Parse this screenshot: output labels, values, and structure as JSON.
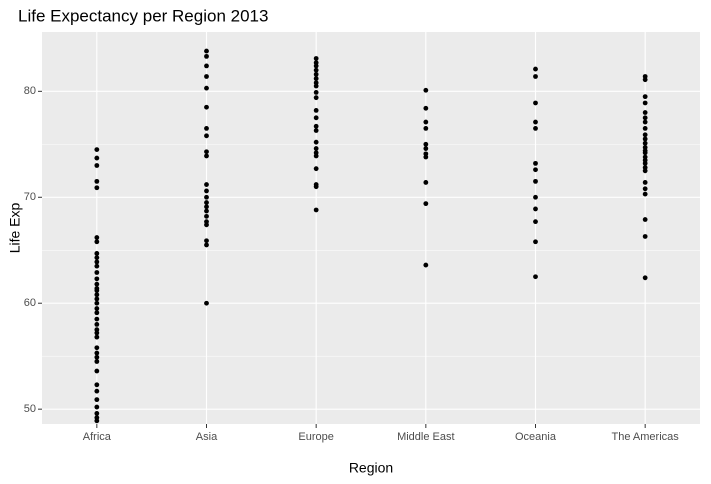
{
  "chart_data": {
    "type": "strip",
    "title": "Life Expectancy per Region 2013",
    "x_label": "Region",
    "y_label": "Life Exp",
    "categories": [
      "Africa",
      "Asia",
      "Europe",
      "Middle East",
      "Oceania",
      "The Americas"
    ],
    "x": [
      "Africa",
      "Africa",
      "Africa",
      "Africa",
      "Africa",
      "Africa",
      "Africa",
      "Africa",
      "Africa",
      "Africa",
      "Africa",
      "Africa",
      "Africa",
      "Africa",
      "Africa",
      "Africa",
      "Africa",
      "Africa",
      "Africa",
      "Africa",
      "Africa",
      "Africa",
      "Africa",
      "Africa",
      "Africa",
      "Africa",
      "Africa",
      "Africa",
      "Africa",
      "Africa",
      "Africa",
      "Africa",
      "Africa",
      "Africa",
      "Africa",
      "Africa",
      "Africa",
      "Africa",
      "Asia",
      "Asia",
      "Asia",
      "Asia",
      "Asia",
      "Asia",
      "Asia",
      "Asia",
      "Asia",
      "Asia",
      "Asia",
      "Asia",
      "Asia",
      "Asia",
      "Asia",
      "Asia",
      "Asia",
      "Asia",
      "Asia",
      "Asia",
      "Asia",
      "Asia",
      "Europe",
      "Europe",
      "Europe",
      "Europe",
      "Europe",
      "Europe",
      "Europe",
      "Europe",
      "Europe",
      "Europe",
      "Europe",
      "Europe",
      "Europe",
      "Europe",
      "Europe",
      "Europe",
      "Europe",
      "Europe",
      "Europe",
      "Europe",
      "Europe",
      "Europe",
      "Middle East",
      "Middle East",
      "Middle East",
      "Middle East",
      "Middle East",
      "Middle East",
      "Middle East",
      "Middle East",
      "Middle East",
      "Middle East",
      "Middle East",
      "Oceania",
      "Oceania",
      "Oceania",
      "Oceania",
      "Oceania",
      "Oceania",
      "Oceania",
      "Oceania",
      "Oceania",
      "Oceania",
      "Oceania",
      "Oceania",
      "Oceania",
      "The Americas",
      "The Americas",
      "The Americas",
      "The Americas",
      "The Americas",
      "The Americas",
      "The Americas",
      "The Americas",
      "The Americas",
      "The Americas",
      "The Americas",
      "The Americas",
      "The Americas",
      "The Americas",
      "The Americas",
      "The Americas",
      "The Americas",
      "The Americas",
      "The Americas",
      "The Americas",
      "The Americas",
      "The Americas",
      "The Americas",
      "The Americas",
      "The Americas"
    ],
    "y": [
      74.5,
      73.7,
      73.0,
      71.5,
      70.9,
      66.2,
      65.8,
      64.7,
      64.3,
      63.9,
      63.5,
      62.9,
      62.3,
      61.8,
      61.4,
      61.2,
      60.8,
      60.4,
      60.0,
      59.5,
      59.1,
      58.5,
      58.0,
      57.5,
      57.2,
      56.8,
      55.8,
      55.3,
      54.9,
      54.5,
      53.6,
      52.3,
      51.7,
      50.9,
      50.2,
      49.6,
      49.2,
      48.9,
      83.8,
      83.3,
      82.4,
      81.4,
      80.3,
      78.5,
      76.5,
      75.8,
      74.3,
      73.9,
      71.2,
      70.6,
      70.0,
      69.5,
      69.1,
      68.7,
      68.2,
      67.7,
      67.4,
      65.9,
      65.5,
      60.0,
      83.1,
      82.7,
      82.4,
      82.0,
      81.6,
      81.2,
      80.8,
      80.5,
      79.9,
      79.4,
      78.2,
      77.5,
      76.7,
      76.3,
      75.2,
      74.6,
      74.2,
      73.9,
      72.7,
      71.2,
      71.0,
      68.8,
      80.1,
      78.4,
      77.1,
      76.5,
      75.0,
      74.6,
      74.1,
      73.8,
      71.4,
      69.4,
      63.6,
      82.1,
      81.4,
      78.9,
      77.1,
      76.5,
      73.2,
      72.6,
      71.5,
      70.0,
      68.9,
      67.7,
      65.8,
      62.5,
      81.4,
      81.1,
      79.5,
      78.9,
      78.0,
      77.5,
      77.1,
      76.5,
      75.9,
      75.5,
      75.1,
      74.7,
      74.4,
      74.2,
      73.8,
      73.5,
      73.2,
      72.8,
      72.5,
      71.4,
      70.8,
      70.3,
      67.9,
      66.3,
      62.4
    ],
    "color": "#000000",
    "ylim": [
      48.6,
      85.6
    ],
    "yticks": [
      50,
      60,
      70,
      80
    ],
    "grid": true
  }
}
